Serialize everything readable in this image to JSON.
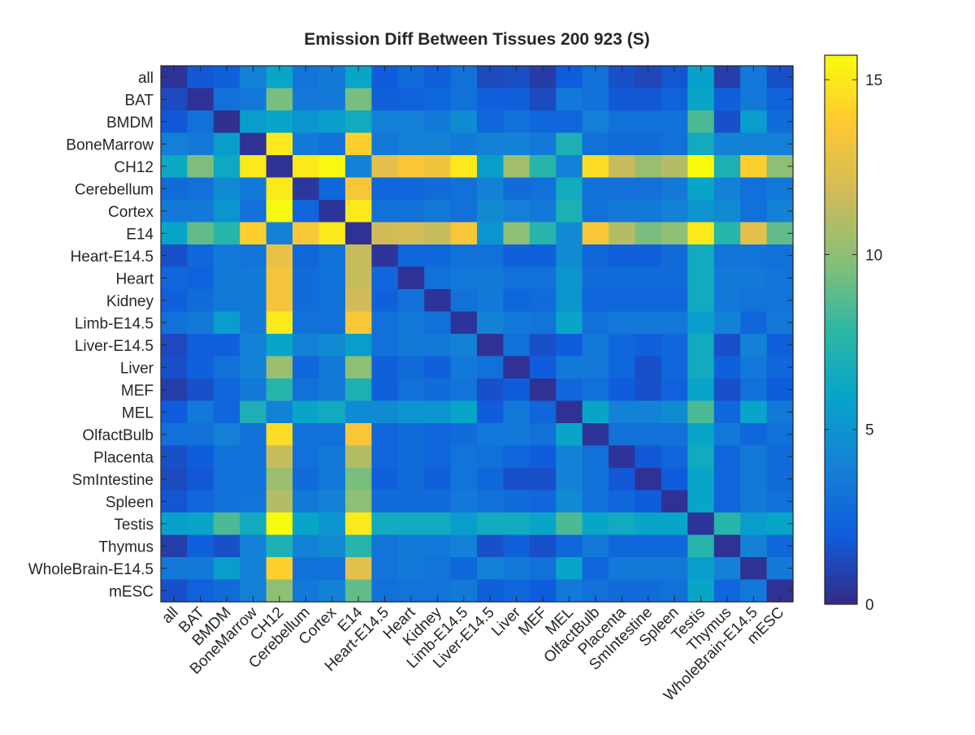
{
  "chart_data": {
    "type": "heatmap",
    "title": "Emission Diff Between Tissues 200 923 (S)",
    "xlabel": "",
    "ylabel": "",
    "categories": [
      "all",
      "BAT",
      "BMDM",
      "BoneMarrow",
      "CH12",
      "Cerebellum",
      "Cortex",
      "E14",
      "Heart-E14.5",
      "Heart",
      "Kidney",
      "Limb-E14.5",
      "Liver-E14.5",
      "Liver",
      "MEF",
      "MEL",
      "OlfactBulb",
      "Placenta",
      "SmIntestine",
      "Spleen",
      "Testis",
      "Thymus",
      "WholeBrain-E14.5",
      "mESC"
    ],
    "colorbar": {
      "min": 0,
      "max": 15.7,
      "ticks": [
        0,
        5,
        10,
        15
      ]
    },
    "colormap": [
      "#352a87",
      "#0f5cdd",
      "#1481d6",
      "#06a4ca",
      "#2eb7a4",
      "#87bf77",
      "#d1bb59",
      "#fec832",
      "#f9fb0e"
    ],
    "values": [
      [
        0.4,
        1.8,
        2.2,
        4.0,
        6.0,
        3.2,
        3.6,
        6.0,
        2.0,
        2.8,
        2.2,
        3.0,
        1.2,
        1.4,
        0.7,
        2.0,
        3.0,
        1.5,
        1.1,
        1.7,
        5.8,
        0.8,
        3.5,
        1.5
      ],
      [
        1.3,
        0.3,
        3.0,
        3.5,
        9.5,
        3.5,
        3.6,
        9.5,
        2.2,
        2.3,
        2.5,
        3.0,
        2.2,
        2.2,
        1.3,
        3.5,
        3.0,
        1.8,
        1.8,
        2.3,
        6.0,
        2.2,
        3.5,
        2.3
      ],
      [
        1.8,
        3.0,
        0.2,
        5.5,
        6.0,
        5.0,
        5.5,
        6.5,
        3.8,
        3.8,
        3.5,
        4.5,
        2.5,
        3.0,
        2.5,
        2.5,
        3.8,
        3.0,
        3.0,
        3.0,
        8.5,
        1.5,
        5.5,
        2.8
      ],
      [
        3.8,
        3.5,
        5.5,
        0.3,
        15.0,
        3.5,
        3.0,
        14.0,
        3.5,
        3.8,
        4.0,
        3.5,
        4.0,
        4.0,
        3.5,
        7.0,
        3.0,
        2.8,
        2.8,
        3.0,
        6.5,
        4.0,
        4.0,
        3.8
      ],
      [
        6.2,
        9.6,
        6.3,
        15.0,
        0.3,
        15.0,
        15.6,
        4.0,
        12.5,
        13.5,
        13.2,
        15.0,
        5.5,
        10.5,
        7.5,
        4.0,
        14.5,
        11.5,
        10.3,
        11.0,
        15.7,
        7.0,
        14.0,
        10.0
      ],
      [
        2.8,
        3.0,
        4.5,
        3.5,
        15.0,
        0.5,
        2.5,
        13.5,
        2.5,
        2.5,
        2.8,
        3.0,
        4.0,
        2.8,
        3.0,
        6.5,
        3.0,
        3.0,
        3.0,
        3.5,
        6.0,
        4.0,
        3.0,
        3.5
      ],
      [
        3.5,
        3.5,
        5.0,
        3.0,
        15.6,
        2.5,
        0.4,
        15.0,
        3.0,
        3.0,
        3.5,
        3.0,
        4.5,
        3.8,
        3.5,
        7.0,
        3.0,
        3.5,
        3.5,
        4.0,
        5.0,
        4.5,
        3.0,
        4.0
      ],
      [
        6.0,
        9.0,
        7.5,
        14.0,
        4.0,
        13.5,
        15.0,
        0.3,
        11.8,
        12.0,
        11.5,
        13.5,
        5.0,
        10.0,
        7.5,
        4.5,
        13.5,
        11.0,
        9.5,
        10.0,
        15.0,
        7.5,
        12.5,
        9.0
      ],
      [
        1.5,
        2.5,
        3.5,
        3.2,
        12.8,
        2.5,
        3.0,
        11.5,
        0.4,
        2.5,
        2.5,
        3.0,
        3.0,
        2.2,
        2.2,
        4.5,
        2.5,
        2.2,
        2.2,
        2.8,
        6.5,
        3.2,
        3.2,
        3.0
      ],
      [
        2.5,
        2.3,
        3.5,
        3.5,
        13.3,
        2.8,
        3.0,
        11.5,
        2.5,
        0.3,
        3.0,
        3.5,
        3.5,
        3.0,
        3.0,
        5.0,
        2.8,
        2.8,
        2.8,
        2.8,
        6.5,
        3.5,
        3.5,
        3.2
      ],
      [
        2.2,
        2.8,
        3.5,
        3.5,
        13.3,
        2.8,
        3.0,
        11.8,
        2.2,
        3.0,
        0.4,
        3.0,
        3.5,
        2.5,
        2.8,
        5.0,
        2.5,
        2.5,
        2.5,
        2.5,
        6.5,
        3.5,
        3.2,
        3.2
      ],
      [
        3.0,
        3.5,
        5.5,
        3.5,
        15.0,
        3.0,
        3.0,
        13.5,
        3.0,
        3.5,
        3.0,
        0.4,
        4.0,
        3.5,
        3.2,
        6.0,
        3.0,
        3.5,
        3.5,
        3.5,
        5.5,
        4.0,
        2.5,
        3.5
      ],
      [
        1.2,
        2.2,
        2.2,
        4.0,
        6.0,
        4.0,
        4.5,
        5.5,
        3.0,
        3.5,
        3.5,
        3.8,
        0.3,
        3.0,
        1.5,
        2.0,
        3.5,
        2.5,
        2.2,
        2.5,
        6.5,
        1.5,
        4.0,
        2.2
      ],
      [
        1.5,
        2.2,
        3.0,
        4.0,
        10.3,
        2.5,
        3.5,
        10.0,
        2.2,
        2.8,
        2.2,
        3.5,
        3.0,
        0.3,
        2.0,
        3.5,
        3.5,
        2.5,
        1.5,
        2.5,
        6.5,
        2.2,
        3.5,
        2.5
      ],
      [
        0.8,
        1.5,
        2.5,
        3.5,
        7.5,
        3.0,
        3.5,
        7.0,
        2.2,
        3.0,
        2.8,
        3.2,
        1.5,
        2.0,
        0.3,
        2.5,
        3.0,
        2.0,
        1.5,
        2.3,
        6.0,
        1.5,
        3.0,
        2.0
      ],
      [
        2.0,
        3.5,
        2.5,
        7.0,
        4.0,
        6.0,
        6.5,
        4.5,
        4.5,
        5.0,
        5.0,
        6.0,
        2.0,
        3.5,
        2.5,
        0.3,
        6.0,
        4.0,
        4.0,
        4.5,
        8.5,
        2.5,
        6.0,
        3.5
      ],
      [
        3.0,
        3.0,
        3.8,
        3.0,
        14.5,
        3.0,
        3.0,
        13.5,
        2.5,
        2.8,
        2.5,
        2.8,
        3.5,
        3.5,
        3.0,
        6.0,
        0.4,
        3.0,
        3.0,
        3.0,
        6.0,
        3.5,
        2.5,
        3.0
      ],
      [
        1.5,
        2.0,
        3.0,
        3.0,
        11.5,
        3.0,
        3.5,
        11.0,
        2.5,
        2.8,
        2.5,
        3.2,
        3.0,
        2.5,
        2.0,
        4.0,
        3.0,
        0.4,
        1.8,
        2.5,
        6.5,
        2.5,
        3.5,
        2.8
      ],
      [
        1.3,
        1.8,
        3.0,
        3.0,
        10.3,
        2.8,
        3.5,
        9.5,
        2.2,
        2.8,
        2.2,
        3.2,
        2.5,
        1.5,
        1.5,
        4.0,
        3.0,
        1.8,
        0.3,
        2.0,
        6.0,
        2.5,
        3.5,
        2.8
      ],
      [
        1.7,
        2.5,
        3.0,
        3.2,
        11.0,
        3.5,
        4.0,
        10.0,
        2.8,
        2.8,
        2.8,
        3.5,
        3.0,
        2.8,
        2.5,
        4.5,
        3.0,
        2.5,
        2.0,
        0.3,
        6.0,
        2.5,
        3.5,
        3.0
      ],
      [
        5.8,
        6.0,
        8.5,
        6.5,
        15.7,
        6.0,
        5.0,
        15.0,
        6.5,
        6.5,
        6.5,
        5.5,
        6.5,
        6.5,
        6.0,
        8.5,
        6.0,
        6.5,
        6.0,
        6.0,
        0.4,
        7.5,
        5.5,
        6.0
      ],
      [
        0.8,
        2.2,
        1.5,
        4.0,
        7.0,
        4.0,
        4.5,
        7.5,
        3.2,
        3.5,
        3.5,
        4.0,
        1.5,
        2.2,
        1.5,
        2.5,
        3.5,
        2.5,
        2.5,
        2.5,
        7.5,
        0.3,
        4.0,
        2.5
      ],
      [
        3.5,
        3.5,
        5.5,
        4.0,
        14.0,
        3.0,
        3.0,
        12.5,
        3.2,
        3.5,
        3.2,
        2.5,
        4.0,
        3.5,
        3.0,
        6.0,
        2.5,
        3.5,
        3.5,
        3.5,
        5.5,
        4.0,
        0.3,
        3.5
      ],
      [
        1.5,
        2.3,
        2.8,
        3.8,
        10.0,
        3.5,
        4.0,
        9.0,
        3.0,
        3.2,
        3.2,
        3.5,
        2.2,
        2.5,
        2.0,
        3.5,
        3.0,
        2.8,
        2.8,
        3.0,
        6.0,
        2.5,
        3.5,
        0.3
      ]
    ]
  }
}
